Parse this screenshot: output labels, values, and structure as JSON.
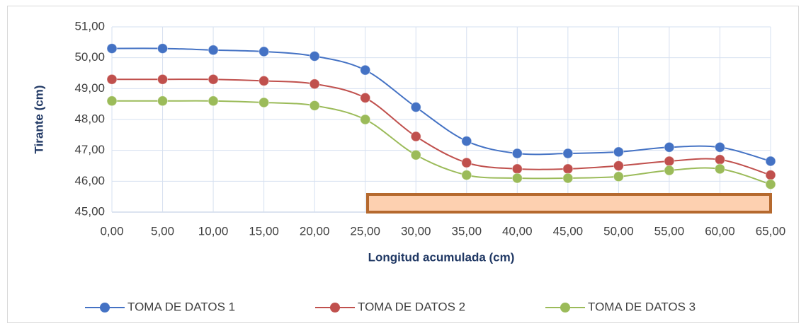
{
  "chart_data": {
    "type": "line",
    "x_label": "Longitud acumulada (cm)",
    "y_label": "Tirante (cm)",
    "x": [
      0,
      5,
      10,
      15,
      20,
      25,
      30,
      35,
      40,
      45,
      50,
      55,
      60,
      65
    ],
    "series": [
      {
        "name": "TOMA DE DATOS 1",
        "color": "#4472c4",
        "values": [
          50.3,
          50.3,
          50.25,
          50.2,
          50.05,
          49.6,
          48.4,
          47.3,
          46.9,
          46.9,
          46.95,
          47.1,
          47.1,
          46.65
        ]
      },
      {
        "name": "TOMA DE DATOS 2",
        "color": "#c0504d",
        "values": [
          49.3,
          49.3,
          49.3,
          49.25,
          49.15,
          48.7,
          47.45,
          46.6,
          46.4,
          46.4,
          46.5,
          46.65,
          46.7,
          46.2
        ]
      },
      {
        "name": "TOMA DE DATOS 3",
        "color": "#9bbb59",
        "values": [
          48.6,
          48.6,
          48.6,
          48.55,
          48.45,
          48.0,
          46.85,
          46.2,
          46.1,
          46.1,
          46.15,
          46.35,
          46.4,
          45.9
        ]
      }
    ],
    "xlim": [
      0,
      65
    ],
    "xticks": [
      {
        "value": 0,
        "label": "0,00"
      },
      {
        "value": 5,
        "label": "5,00"
      },
      {
        "value": 10,
        "label": "10,00"
      },
      {
        "value": 15,
        "label": "15,00"
      },
      {
        "value": 20,
        "label": "20,00"
      },
      {
        "value": 25,
        "label": "25,00"
      },
      {
        "value": 30,
        "label": "30,00"
      },
      {
        "value": 35,
        "label": "35,00"
      },
      {
        "value": 40,
        "label": "40,00"
      },
      {
        "value": 45,
        "label": "45,00"
      },
      {
        "value": 50,
        "label": "50,00"
      },
      {
        "value": 55,
        "label": "55,00"
      },
      {
        "value": 60,
        "label": "60,00"
      },
      {
        "value": 65,
        "label": "65,00"
      }
    ],
    "ylim": [
      45,
      51
    ],
    "yticks": [
      {
        "value": 45,
        "label": "45,00"
      },
      {
        "value": 46,
        "label": "46,00"
      },
      {
        "value": 47,
        "label": "47,00"
      },
      {
        "value": 48,
        "label": "48,00"
      },
      {
        "value": 49,
        "label": "49,00"
      },
      {
        "value": 50,
        "label": "50,00"
      },
      {
        "value": 51,
        "label": "51,00"
      }
    ],
    "grid": true,
    "smooth": true,
    "legend": "bottom"
  }
}
